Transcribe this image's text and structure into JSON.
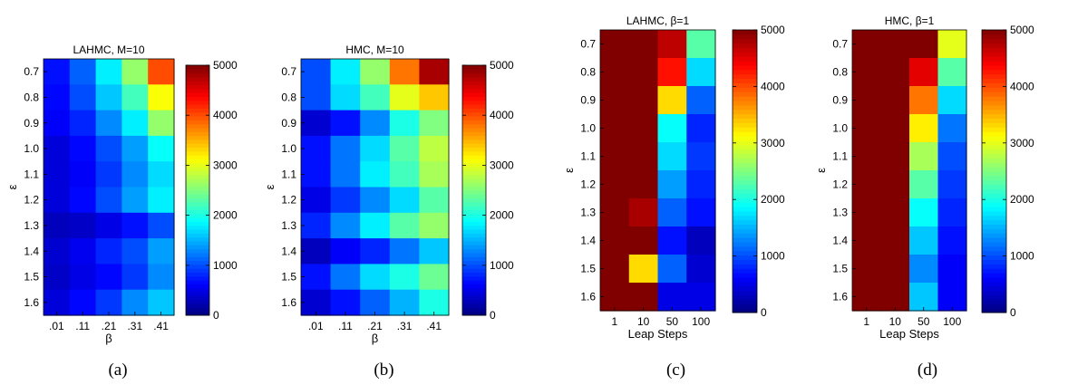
{
  "chart_data": [
    {
      "type": "heatmap",
      "title": "LAHMC, M=10",
      "caption": "(a)",
      "xlabel": "β",
      "ylabel": "ε",
      "x_categories": [
        ".01",
        ".11",
        ".21",
        ".31",
        ".41"
      ],
      "y_categories": [
        "0.7",
        "0.8",
        "0.9",
        "1.0",
        "1.1",
        "1.2",
        "1.3",
        "1.4",
        "1.5",
        "1.6"
      ],
      "values": [
        [
          700,
          1100,
          1800,
          2600,
          4000
        ],
        [
          650,
          1000,
          1600,
          2200,
          3100
        ],
        [
          600,
          800,
          1300,
          1800,
          2600
        ],
        [
          450,
          650,
          1000,
          1400,
          1900
        ],
        [
          450,
          600,
          900,
          1300,
          1700
        ],
        [
          450,
          650,
          1000,
          1400,
          1800
        ],
        [
          300,
          350,
          500,
          700,
          1000
        ],
        [
          400,
          550,
          800,
          1000,
          1400
        ],
        [
          350,
          500,
          650,
          900,
          1300
        ],
        [
          450,
          650,
          900,
          1300,
          1600
        ]
      ],
      "colorbar": {
        "min": 0,
        "max": 5000,
        "ticks": [
          0,
          1000,
          2000,
          3000,
          4000,
          5000
        ]
      }
    },
    {
      "type": "heatmap",
      "title": "HMC, M=10",
      "caption": "(b)",
      "xlabel": "β",
      "ylabel": "ε",
      "x_categories": [
        ".01",
        ".11",
        ".21",
        ".31",
        ".41"
      ],
      "y_categories": [
        "0.7",
        "0.8",
        "0.9",
        "1.0",
        "1.1",
        "1.2",
        "1.3",
        "1.4",
        "1.5",
        "1.6"
      ],
      "values": [
        [
          1000,
          1800,
          2600,
          3800,
          4800
        ],
        [
          1000,
          1700,
          2200,
          3000,
          3400
        ],
        [
          400,
          700,
          1300,
          2000,
          2500
        ],
        [
          700,
          1200,
          1700,
          2300,
          2800
        ],
        [
          700,
          1200,
          1800,
          2200,
          2700
        ],
        [
          500,
          900,
          1300,
          1700,
          2300
        ],
        [
          800,
          1300,
          1800,
          2300,
          2600
        ],
        [
          300,
          600,
          800,
          1200,
          1600
        ],
        [
          700,
          1200,
          1700,
          2000,
          2400
        ],
        [
          400,
          700,
          1100,
          1500,
          2000
        ]
      ],
      "colorbar": {
        "min": 0,
        "max": 5000,
        "ticks": [
          0,
          1000,
          2000,
          3000,
          4000,
          5000
        ]
      }
    },
    {
      "type": "heatmap",
      "title": "LAHMC, β=1",
      "caption": "(c)",
      "xlabel": "Leap Steps",
      "ylabel": "ε",
      "x_categories": [
        "1",
        "10",
        "50",
        "100"
      ],
      "y_categories": [
        "0.7",
        "0.8",
        "0.9",
        "1.0",
        "1.1",
        "1.2",
        "1.3",
        "1.4",
        "1.5",
        "1.6"
      ],
      "values": [
        [
          5000,
          5000,
          4700,
          2300
        ],
        [
          5000,
          5000,
          4300,
          1700
        ],
        [
          5000,
          5000,
          3300,
          1100
        ],
        [
          5000,
          5000,
          1900,
          800
        ],
        [
          5000,
          5000,
          1700,
          900
        ],
        [
          5000,
          5000,
          1400,
          800
        ],
        [
          5000,
          4800,
          1100,
          700
        ],
        [
          5000,
          5000,
          700,
          300
        ],
        [
          5000,
          3300,
          1100,
          400
        ],
        [
          5000,
          5000,
          500,
          500
        ]
      ],
      "colorbar": {
        "min": 0,
        "max": 5000,
        "ticks": [
          0,
          1000,
          2000,
          3000,
          4000,
          5000
        ]
      }
    },
    {
      "type": "heatmap",
      "title": "HMC, β=1",
      "caption": "(d)",
      "xlabel": "Leap Steps",
      "ylabel": "ε",
      "x_categories": [
        "1",
        "10",
        "50",
        "100"
      ],
      "y_categories": [
        "0.7",
        "0.8",
        "0.9",
        "1.0",
        "1.1",
        "1.2",
        "1.3",
        "1.4",
        "1.5",
        "1.6"
      ],
      "values": [
        [
          5000,
          5000,
          5000,
          3000
        ],
        [
          5000,
          5000,
          4500,
          2300
        ],
        [
          5000,
          5000,
          3800,
          1700
        ],
        [
          5000,
          5000,
          3200,
          1200
        ],
        [
          5000,
          5000,
          2700,
          1000
        ],
        [
          5000,
          5000,
          2300,
          900
        ],
        [
          5000,
          5000,
          1900,
          800
        ],
        [
          5000,
          5000,
          1600,
          700
        ],
        [
          5000,
          5000,
          1300,
          600
        ],
        [
          5000,
          5000,
          1600,
          600
        ]
      ],
      "colorbar": {
        "min": 0,
        "max": 5000,
        "ticks": [
          0,
          1000,
          2000,
          3000,
          4000,
          5000
        ]
      }
    }
  ]
}
